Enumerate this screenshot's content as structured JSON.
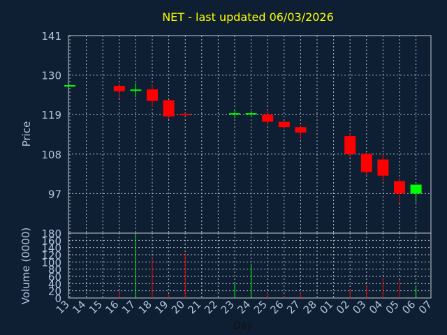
{
  "chart_data": {
    "type": "candlestick",
    "title": "NET - last updated 06/03/2026",
    "xlabel": "Day",
    "price_axis": {
      "label": "Price",
      "ylim": [
        86,
        141
      ],
      "ticks": [
        97,
        108,
        119,
        130,
        141
      ],
      "grid": true
    },
    "volume_axis": {
      "label": "Volume (0000)",
      "ylim": [
        0,
        180
      ],
      "ticks": [
        0,
        20,
        40,
        60,
        80,
        100,
        120,
        140,
        160,
        180
      ],
      "grid": true
    },
    "x_ticks": [
      "13",
      "14",
      "15",
      "16",
      "17",
      "18",
      "19",
      "20",
      "21",
      "22",
      "23",
      "24",
      "25",
      "26",
      "27",
      "28",
      "01",
      "02",
      "03",
      "04",
      "05",
      "06",
      "07"
    ],
    "candles": [
      {
        "x": "13",
        "open": 127.0,
        "high": 127.0,
        "low": 127.0,
        "close": 127.0,
        "volume": 0
      },
      {
        "x": "16",
        "open": 127.0,
        "high": 127.5,
        "low": 123.5,
        "close": 125.5,
        "volume": 20
      },
      {
        "x": "17",
        "open": 125.8,
        "high": 127.8,
        "low": 123.8,
        "close": 125.8,
        "volume": 180
      },
      {
        "x": "18",
        "open": 126.0,
        "high": 127.5,
        "low": 121.0,
        "close": 122.8,
        "volume": 110
      },
      {
        "x": "19",
        "open": 123.0,
        "high": 123.0,
        "low": 117.7,
        "close": 118.5,
        "volume": 10
      },
      {
        "x": "20",
        "open": 119.0,
        "high": 119.5,
        "low": 118.5,
        "close": 118.8,
        "volume": 125
      },
      {
        "x": "23",
        "open": 119.2,
        "high": 120.5,
        "low": 118.0,
        "close": 119.2,
        "volume": 40
      },
      {
        "x": "24",
        "open": 119.2,
        "high": 120.0,
        "low": 118.3,
        "close": 119.2,
        "volume": 95
      },
      {
        "x": "25",
        "open": 119.0,
        "high": 120.3,
        "low": 116.2,
        "close": 117.0,
        "volume": 15
      },
      {
        "x": "26",
        "open": 117.0,
        "high": 117.0,
        "low": 115.0,
        "close": 115.5,
        "volume": 5
      },
      {
        "x": "27",
        "open": 115.5,
        "high": 116.0,
        "low": 112.0,
        "close": 114.0,
        "volume": 15
      },
      {
        "x": "02",
        "open": 113.0,
        "high": 114.0,
        "low": 107.0,
        "close": 108.0,
        "volume": 25
      },
      {
        "x": "03",
        "open": 108.0,
        "high": 108.5,
        "low": 102.0,
        "close": 103.0,
        "volume": 35
      },
      {
        "x": "04",
        "open": 106.5,
        "high": 108.0,
        "low": 100.5,
        "close": 102.0,
        "volume": 55
      },
      {
        "x": "05",
        "open": 100.5,
        "high": 101.0,
        "low": 94.5,
        "close": 97.0,
        "volume": 50
      },
      {
        "x": "06",
        "open": 97.0,
        "high": 99.5,
        "low": 94.5,
        "close": 99.5,
        "volume": 35
      }
    ],
    "colors": {
      "up": "#00ff00",
      "down": "#ff0000",
      "background": "#0e1f33",
      "grid": "#b8c0cc",
      "text": "#b0c4de",
      "title": "#ffff00"
    }
  }
}
